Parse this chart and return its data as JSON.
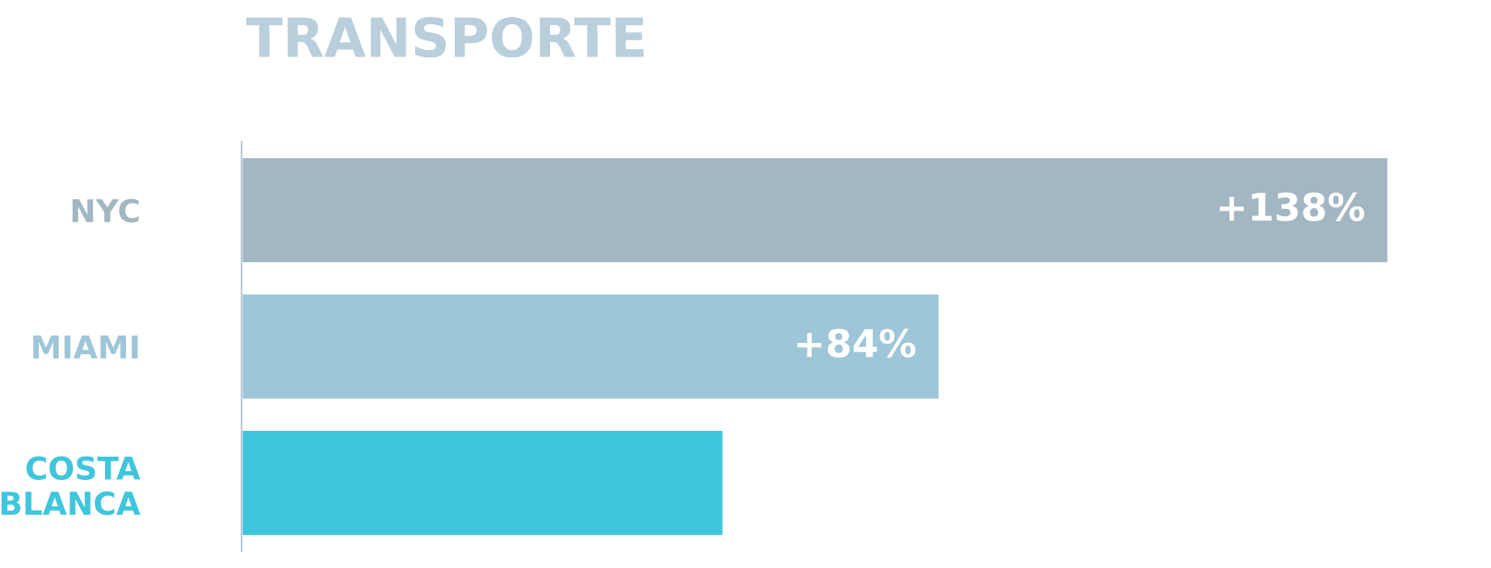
{
  "chart_data": {
    "type": "bar",
    "orientation": "horizontal",
    "title": "TRANSPORTE",
    "categories": [
      "NYC",
      "MIAMI",
      "COSTA\nBLANCA"
    ],
    "values": [
      138,
      84,
      58
    ],
    "colors": [
      "#a2b7c1",
      "#9ec6d9",
      "#3fc6dd"
    ],
    "value_labels": [
      "+138%",
      "+84%",
      null
    ],
    "grid": false,
    "legend": false
  }
}
